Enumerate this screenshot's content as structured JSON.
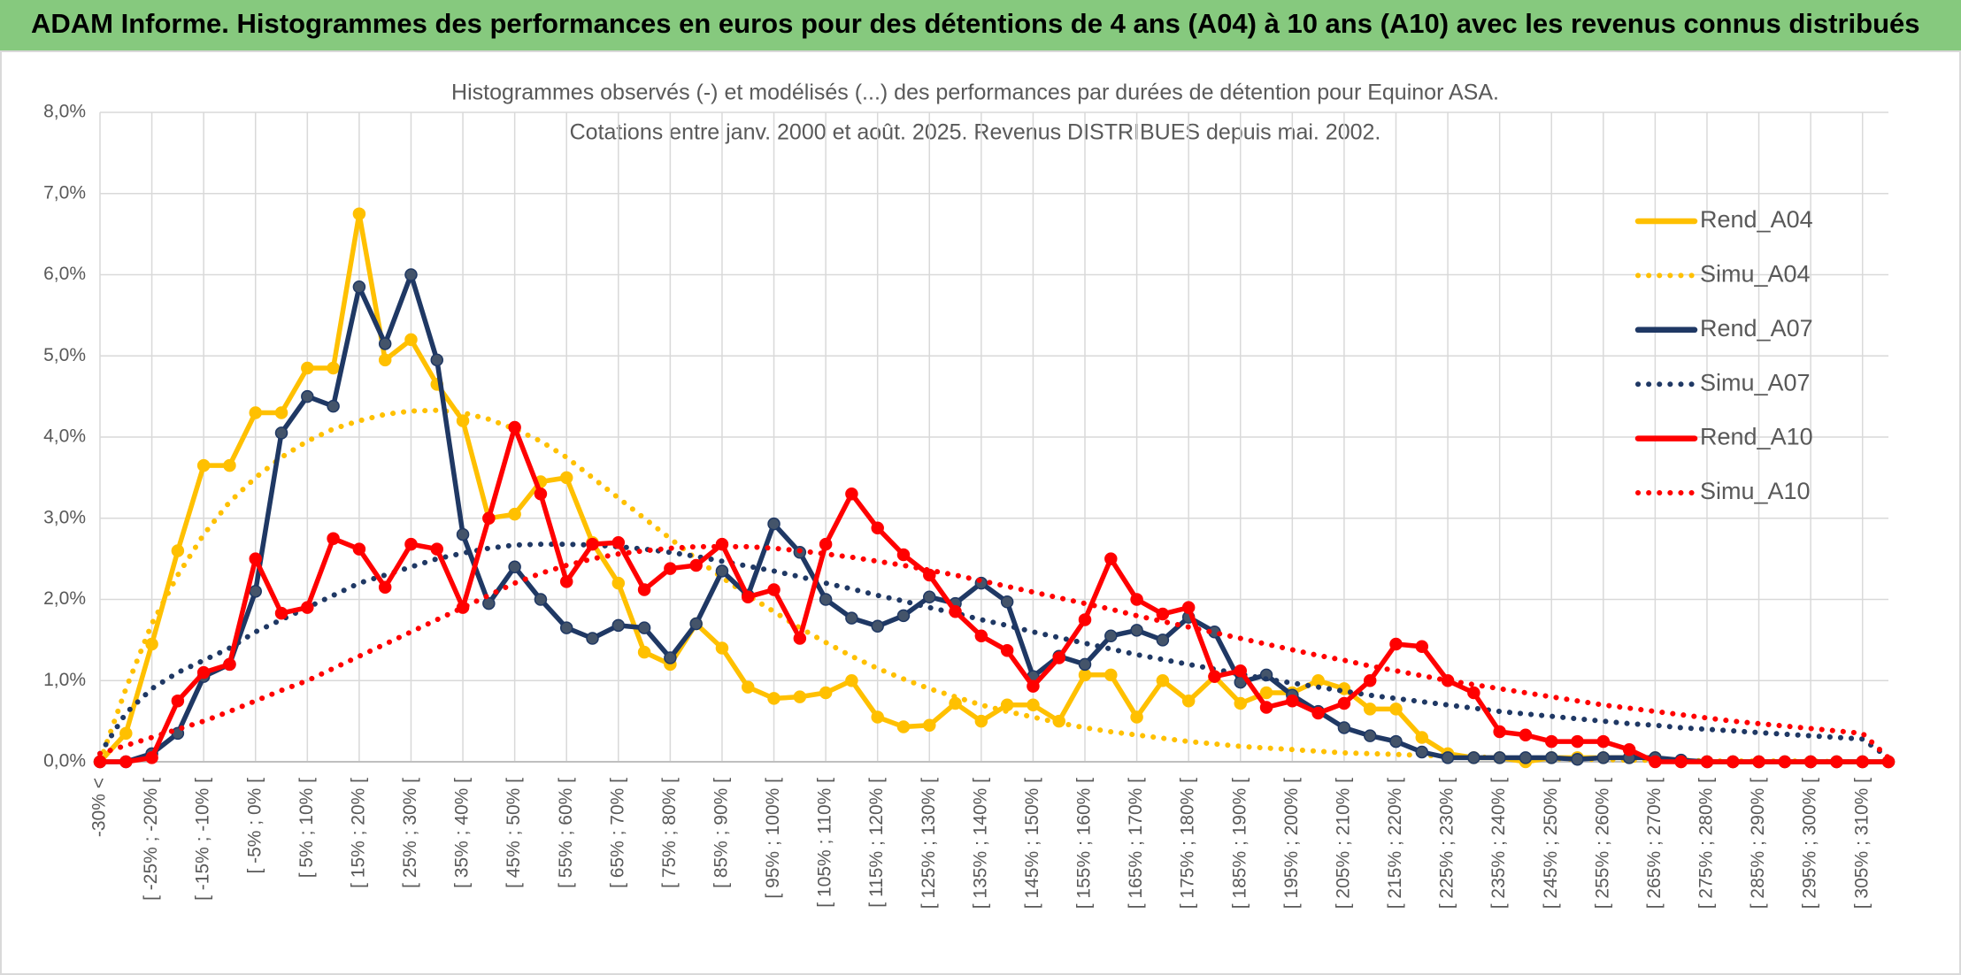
{
  "page_header": "ADAM Informe. Histogrammes des performances en euros pour des détentions de 4 ans (A04) à 10 ans (A10) avec les revenus connus distribués",
  "chart_data": {
    "type": "line",
    "title": "Histogrammes observés (-) et modélisés (...) des performances par durées de détention pour Equinor ASA.",
    "subtitle": "Cotations entre janv. 2000 et août. 2025. Revenus DISTRIBUES depuis mai. 2002.",
    "categories": [
      "-30% <",
      null,
      "[ -25% ; -20% [",
      null,
      "[ -15% ; -10% [",
      null,
      "[ -5% ; 0% [",
      null,
      "[ 5% ; 10% [",
      null,
      "[ 15% ; 20% [",
      null,
      "[ 25% ; 30% [",
      null,
      "[ 35% ; 40% [",
      null,
      "[ 45% ; 50% [",
      null,
      "[ 55% ; 60% [",
      null,
      "[ 65% ; 70% [",
      null,
      "[ 75% ; 80% [",
      null,
      "[ 85% ; 90% [",
      null,
      "[ 95% ; 100% [",
      null,
      "[ 105% ; 110% [",
      null,
      "[ 115% ; 120% [",
      null,
      "[ 125% ; 130% [",
      null,
      "[ 135% ; 140% [",
      null,
      "[ 145% ; 150% [",
      null,
      "[ 155% ; 160% [",
      null,
      "[ 165% ; 170% [",
      null,
      "[ 175% ; 180% [",
      null,
      "[ 185% ; 190% [",
      null,
      "[ 195% ; 200% [",
      null,
      "[ 205% ; 210% [",
      null,
      "[ 215% ; 220% [",
      null,
      "[ 225% ; 230% [",
      null,
      "[ 235% ; 240% [",
      null,
      "[ 245% ; 250% [",
      null,
      "[ 255% ; 260% [",
      null,
      "[ 265% ; 270% [",
      null,
      "[ 275% ; 280% [",
      null,
      "[ 285% ; 290% [",
      null,
      "[ 295% ; 300% [",
      null,
      "[ 305% ; 310% [",
      null
    ],
    "series": [
      {
        "name": "Rend_A04",
        "color": "#FFC000",
        "line_style": "solid",
        "markers": true,
        "values": [
          0,
          0.35,
          1.45,
          2.6,
          3.65,
          3.65,
          4.3,
          4.3,
          4.85,
          4.85,
          6.75,
          4.95,
          5.2,
          4.65,
          4.2,
          3.0,
          3.05,
          3.45,
          3.5,
          2.7,
          2.2,
          1.35,
          1.2,
          1.7,
          1.4,
          0.92,
          0.78,
          0.8,
          0.85,
          1.0,
          0.55,
          0.43,
          0.45,
          0.72,
          0.5,
          0.7,
          0.7,
          0.5,
          1.07,
          1.07,
          0.55,
          1.0,
          0.75,
          1.05,
          0.72,
          0.85,
          0.85,
          1.0,
          0.9,
          0.65,
          0.65,
          0.3,
          0.1,
          0.05,
          0.05,
          0,
          0.05,
          0.05,
          0.05,
          0.05,
          0.05,
          0,
          0,
          0,
          0,
          0,
          0,
          0,
          0,
          0
        ]
      },
      {
        "name": "Simu_A04",
        "color": "#FFC000",
        "line_style": "dotted",
        "markers": false,
        "values": [
          0,
          0.9,
          1.7,
          2.3,
          2.8,
          3.2,
          3.5,
          3.75,
          3.95,
          4.1,
          4.2,
          4.28,
          4.32,
          4.33,
          4.3,
          4.22,
          4.1,
          3.95,
          3.75,
          3.5,
          3.25,
          3.0,
          2.75,
          2.5,
          2.27,
          2.05,
          1.85,
          1.65,
          1.47,
          1.3,
          1.15,
          1.02,
          0.9,
          0.8,
          0.7,
          0.62,
          0.55,
          0.48,
          0.42,
          0.37,
          0.33,
          0.29,
          0.25,
          0.22,
          0.19,
          0.17,
          0.15,
          0.13,
          0.11,
          0.1,
          0.09,
          0.08,
          0.07,
          0.06,
          0.05,
          0.04,
          0.04,
          0.03,
          0.03,
          0.02,
          0.02,
          0.02,
          0.01,
          0.01,
          0.01,
          0.01,
          0.01,
          0,
          0,
          0
        ]
      },
      {
        "name": "Rend_A07",
        "color": "#1F3864",
        "line_style": "solid",
        "markers": true,
        "values": [
          0,
          0,
          0.1,
          0.35,
          1.05,
          1.2,
          2.1,
          4.05,
          4.5,
          4.38,
          5.85,
          5.15,
          6.0,
          4.95,
          2.8,
          1.95,
          2.4,
          2.0,
          1.65,
          1.52,
          1.68,
          1.65,
          1.28,
          1.7,
          2.35,
          2.05,
          2.93,
          2.58,
          2.0,
          1.77,
          1.67,
          1.8,
          2.03,
          1.95,
          2.2,
          1.97,
          1.05,
          1.3,
          1.2,
          1.55,
          1.62,
          1.5,
          1.78,
          1.6,
          0.98,
          1.07,
          0.82,
          0.62,
          0.42,
          0.32,
          0.25,
          0.12,
          0.05,
          0.05,
          0.05,
          0.05,
          0.05,
          0.03,
          0.05,
          0.05,
          0.05,
          0.02,
          0,
          0,
          0,
          0,
          0,
          0,
          0,
          0
        ]
      },
      {
        "name": "Simu_A07",
        "color": "#1F3864",
        "line_style": "dotted",
        "markers": false,
        "values": [
          0.1,
          0.6,
          0.9,
          1.1,
          1.25,
          1.4,
          1.6,
          1.75,
          1.9,
          2.05,
          2.2,
          2.3,
          2.4,
          2.5,
          2.57,
          2.63,
          2.67,
          2.68,
          2.68,
          2.67,
          2.65,
          2.62,
          2.58,
          2.53,
          2.47,
          2.41,
          2.35,
          2.28,
          2.2,
          2.13,
          2.05,
          1.98,
          1.9,
          1.83,
          1.75,
          1.68,
          1.6,
          1.53,
          1.46,
          1.39,
          1.32,
          1.26,
          1.2,
          1.14,
          1.08,
          1.02,
          0.97,
          0.92,
          0.87,
          0.82,
          0.78,
          0.74,
          0.7,
          0.66,
          0.62,
          0.59,
          0.56,
          0.53,
          0.5,
          0.47,
          0.45,
          0.42,
          0.4,
          0.38,
          0.36,
          0.34,
          0.32,
          0.3,
          0.28,
          0.05
        ]
      },
      {
        "name": "Rend_A10",
        "color": "#FF0000",
        "line_style": "solid",
        "markers": true,
        "values": [
          0,
          0,
          0.05,
          0.75,
          1.1,
          1.2,
          2.5,
          1.83,
          1.9,
          2.75,
          2.62,
          2.15,
          2.68,
          2.62,
          1.9,
          3.0,
          4.12,
          3.3,
          2.22,
          2.68,
          2.7,
          2.12,
          2.38,
          2.42,
          2.68,
          2.03,
          2.12,
          1.52,
          2.68,
          3.3,
          2.88,
          2.55,
          2.3,
          1.85,
          1.55,
          1.37,
          0.93,
          1.28,
          1.75,
          2.5,
          2.0,
          1.82,
          1.9,
          1.05,
          1.12,
          0.67,
          0.75,
          0.6,
          0.72,
          1.0,
          1.45,
          1.42,
          1.0,
          0.85,
          0.37,
          0.33,
          0.25,
          0.25,
          0.25,
          0.15,
          0,
          0,
          0,
          0,
          0,
          0,
          0,
          0,
          0,
          0
        ]
      },
      {
        "name": "Simu_A10",
        "color": "#FF0000",
        "line_style": "dotted",
        "markers": false,
        "values": [
          0.1,
          0.2,
          0.3,
          0.4,
          0.5,
          0.62,
          0.75,
          0.88,
          1.0,
          1.15,
          1.3,
          1.45,
          1.6,
          1.75,
          1.9,
          2.05,
          2.2,
          2.32,
          2.42,
          2.5,
          2.56,
          2.6,
          2.63,
          2.65,
          2.65,
          2.65,
          2.63,
          2.6,
          2.56,
          2.52,
          2.47,
          2.42,
          2.36,
          2.3,
          2.23,
          2.16,
          2.09,
          2.02,
          1.95,
          1.88,
          1.8,
          1.73,
          1.66,
          1.59,
          1.52,
          1.45,
          1.38,
          1.31,
          1.25,
          1.18,
          1.12,
          1.06,
          1.0,
          0.95,
          0.9,
          0.85,
          0.8,
          0.75,
          0.7,
          0.66,
          0.62,
          0.58,
          0.54,
          0.5,
          0.47,
          0.44,
          0.41,
          0.38,
          0.35,
          0.05
        ]
      }
    ],
    "ylim": [
      0,
      8
    ],
    "yticks": [
      {
        "value": 0,
        "label": "0,0%"
      },
      {
        "value": 1,
        "label": "1,0%"
      },
      {
        "value": 2,
        "label": "2,0%"
      },
      {
        "value": 3,
        "label": "3,0%"
      },
      {
        "value": 4,
        "label": "4,0%"
      },
      {
        "value": 5,
        "label": "5,0%"
      },
      {
        "value": 6,
        "label": "6,0%"
      },
      {
        "value": 7,
        "label": "7,0%"
      },
      {
        "value": 8,
        "label": "8,0%"
      }
    ],
    "grid": true,
    "legend": "right"
  }
}
